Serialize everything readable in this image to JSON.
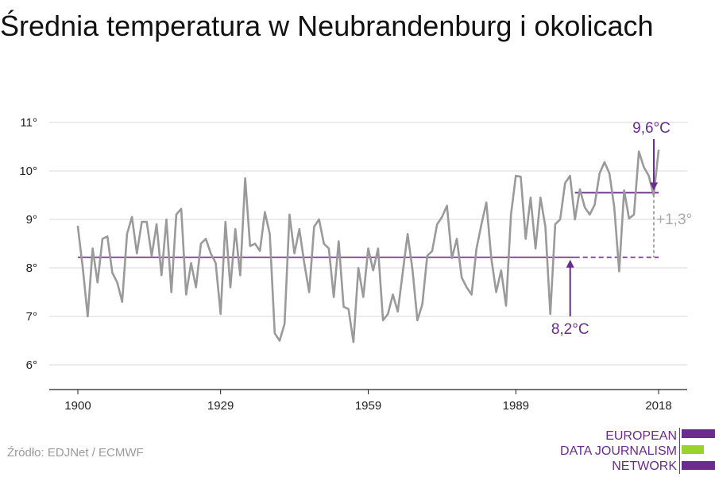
{
  "title": "Średnia temperatura w Neubrandenburg i okolicach",
  "source": "Źródło: EDJNet / ECMWF",
  "logo": {
    "line1": "EUROPEAN",
    "line2": "DATA JOURNALISM",
    "line3": "NETWORK"
  },
  "colors": {
    "series": "#9a9a9a",
    "accent": "#6a2c8e",
    "grid": "#d9d9d9",
    "logo_green": "#9ad32a"
  },
  "chart_data": {
    "type": "line",
    "x_start": 1900,
    "x_end": 2018,
    "ylim": [
      5.5,
      11.3
    ],
    "y_ticks": [
      6,
      7,
      8,
      9,
      10,
      11
    ],
    "y_tick_labels": [
      "6°",
      "7°",
      "8°",
      "9°",
      "10°",
      "11°"
    ],
    "x_ticks": [
      1900,
      1929,
      1959,
      1989,
      2018
    ],
    "x_tick_labels": [
      "1900",
      "1929",
      "1959",
      "1989",
      "2018"
    ],
    "grid": "horizontal",
    "values": [
      8.85,
      8.0,
      7.0,
      8.4,
      7.7,
      8.6,
      8.65,
      7.9,
      7.7,
      7.3,
      8.7,
      9.05,
      8.3,
      8.95,
      8.95,
      8.25,
      8.9,
      7.85,
      9.0,
      7.5,
      9.1,
      9.22,
      7.45,
      8.1,
      7.6,
      8.5,
      8.6,
      8.3,
      8.1,
      7.05,
      8.95,
      7.6,
      8.8,
      7.85,
      9.85,
      8.45,
      8.5,
      8.35,
      9.15,
      8.7,
      6.65,
      6.5,
      6.85,
      9.1,
      8.3,
      8.8,
      8.1,
      7.5,
      8.85,
      9.0,
      8.5,
      8.4,
      7.4,
      8.55,
      7.2,
      7.15,
      6.47,
      8.0,
      7.4,
      8.4,
      7.95,
      8.4,
      6.92,
      7.05,
      7.45,
      7.1,
      7.9,
      8.7,
      7.95,
      6.92,
      7.25,
      8.25,
      8.35,
      8.9,
      9.05,
      9.28,
      8.2,
      8.6,
      7.8,
      7.6,
      7.45,
      8.4,
      8.9,
      9.35,
      8.2,
      7.5,
      7.95,
      7.22,
      9.1,
      9.9,
      9.88,
      8.6,
      9.45,
      8.4,
      9.45,
      8.85,
      7.05,
      8.9,
      9.0,
      9.75,
      9.9,
      9.0,
      9.62,
      9.25,
      9.1,
      9.3,
      9.95,
      10.18,
      9.95,
      9.25,
      7.93,
      9.6,
      9.02,
      9.1,
      10.4,
      10.08,
      9.9,
      9.5,
      10.42
    ],
    "annotations": [
      {
        "label": "8,2°C",
        "value": 8.22,
        "x_from": 1900,
        "x_to": 2018
      },
      {
        "label": "9,6°C",
        "value": 9.55,
        "x_from": 2001,
        "x_to": 2018
      },
      {
        "label": "+1,3°",
        "kind": "difference"
      }
    ]
  }
}
